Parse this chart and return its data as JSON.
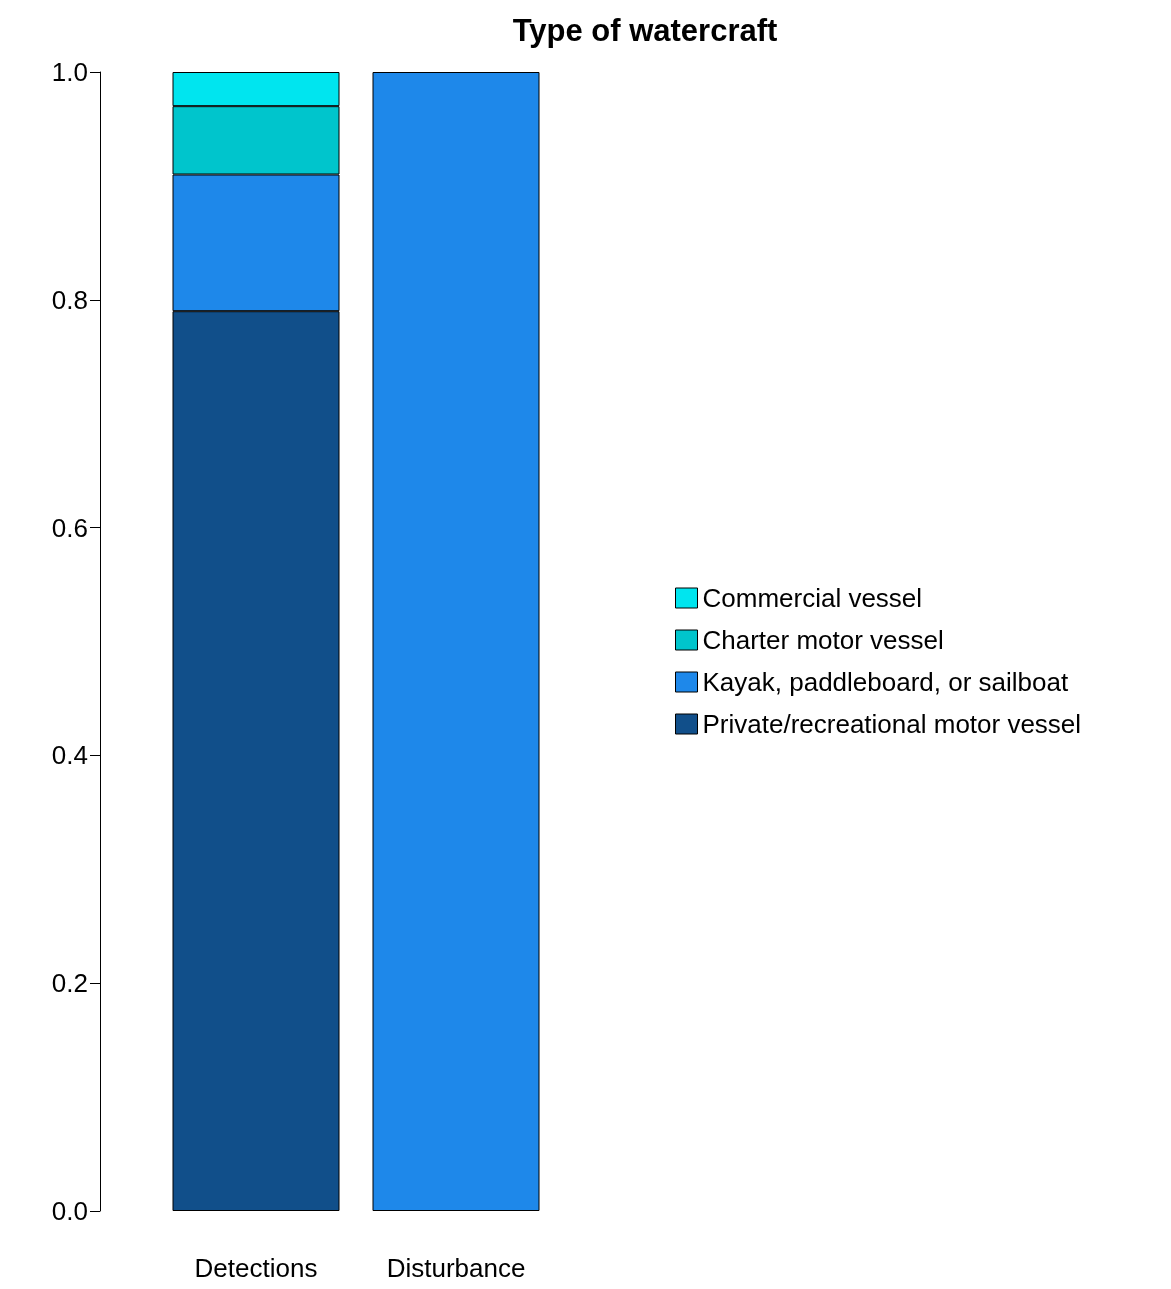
{
  "chart_data": {
    "type": "bar",
    "title": "Type of watercraft",
    "stacked": true,
    "categories": [
      "Detections",
      "Disturbance"
    ],
    "series": [
      {
        "name": "Private/recreational motor vessel",
        "color": "#114f8a",
        "values": [
          0.79,
          null
        ]
      },
      {
        "name": "Kayak, paddleboard, or sailboat",
        "color": "#1e88ea",
        "values": [
          0.12,
          1.0
        ]
      },
      {
        "name": "Charter motor vessel",
        "color": "#00c5cc",
        "values": [
          0.06,
          null
        ]
      },
      {
        "name": "Commercial vessel",
        "color": "#00e5ef",
        "values": [
          0.03,
          null
        ]
      }
    ],
    "ylim": [
      0,
      1
    ],
    "yticks": [
      {
        "value": 0,
        "label": "0.0"
      },
      {
        "value": 0.2,
        "label": "0.2"
      },
      {
        "value": 0.4,
        "label": "0.4"
      },
      {
        "value": 0.6,
        "label": "0.6"
      },
      {
        "value": 0.8,
        "label": "0.8"
      },
      {
        "value": 1,
        "label": "1.0"
      }
    ],
    "grid": false,
    "legend": "right"
  }
}
